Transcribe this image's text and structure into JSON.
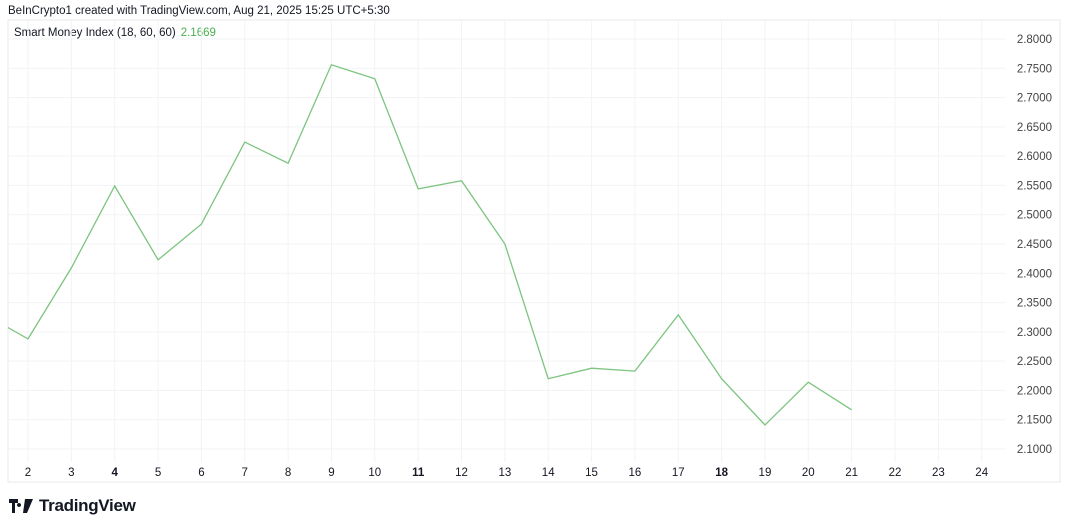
{
  "header": {
    "credit": "BeInCrypto1 created with TradingView.com, Aug 21, 2025 15:25 UTC+5:30",
    "indicator_name": "Smart Money Index (18, 60, 60)",
    "indicator_value": "2.1669"
  },
  "logo": {
    "text": "TradingView"
  },
  "colors": {
    "line": "#7cc47f",
    "value": "#4caf50",
    "grid": "#f2f3f5",
    "axis_text": "#444"
  },
  "chart_data": {
    "type": "line",
    "title": "",
    "x": [
      1,
      2,
      3,
      4,
      5,
      6,
      7,
      8,
      9,
      10,
      11,
      12,
      13,
      14,
      15,
      16,
      17,
      18,
      19,
      20,
      21
    ],
    "xticks": [
      "2",
      "3",
      "4",
      "5",
      "6",
      "7",
      "8",
      "9",
      "10",
      "11",
      "12",
      "13",
      "14",
      "15",
      "16",
      "17",
      "18",
      "19",
      "20",
      "21",
      "22",
      "23",
      "24"
    ],
    "bold_xticks": [
      "4",
      "11",
      "18"
    ],
    "series": [
      {
        "values": [
          2.33,
          2.288,
          2.409,
          2.549,
          2.423,
          2.484,
          2.624,
          2.588,
          2.756,
          2.732,
          2.544,
          2.558,
          2.45,
          2.22,
          2.238,
          2.233,
          2.329,
          2.22,
          2.141,
          2.214,
          2.1669
        ]
      }
    ],
    "yticks": [
      "2.8000",
      "2.7500",
      "2.7000",
      "2.6500",
      "2.6000",
      "2.5500",
      "2.5000",
      "2.4500",
      "2.4000",
      "2.3500",
      "2.3000",
      "2.2500",
      "2.2000",
      "2.1500",
      "2.1000"
    ],
    "ylim": [
      2.1,
      2.8
    ],
    "xlim": [
      1.4,
      25.4
    ],
    "grid": true,
    "y_axis_side": "right"
  }
}
